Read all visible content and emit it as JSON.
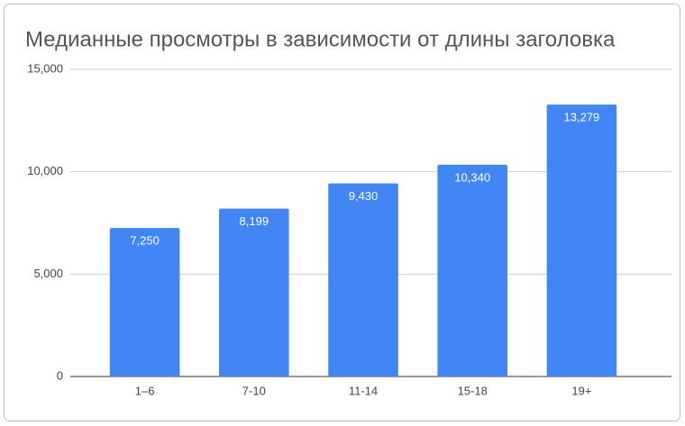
{
  "chart_data": {
    "type": "bar",
    "title": "Медианные просмотры в зависимости от длины заголовка",
    "categories": [
      "1–6",
      "7-10",
      "11-14",
      "15-18",
      "19+"
    ],
    "values": [
      7250,
      8199,
      9430,
      10340,
      13279
    ],
    "value_labels": [
      "7,250",
      "8,199",
      "9,430",
      "10,340",
      "13,279"
    ],
    "color": "#4285f4",
    "ylim": [
      0,
      15000
    ],
    "yticks": [
      0,
      {
        "value": 5000,
        "label": "5,000"
      },
      {
        "value": 10000,
        "label": "10,000"
      },
      {
        "value": 15000,
        "label": "15,000"
      }
    ],
    "grid": true
  }
}
